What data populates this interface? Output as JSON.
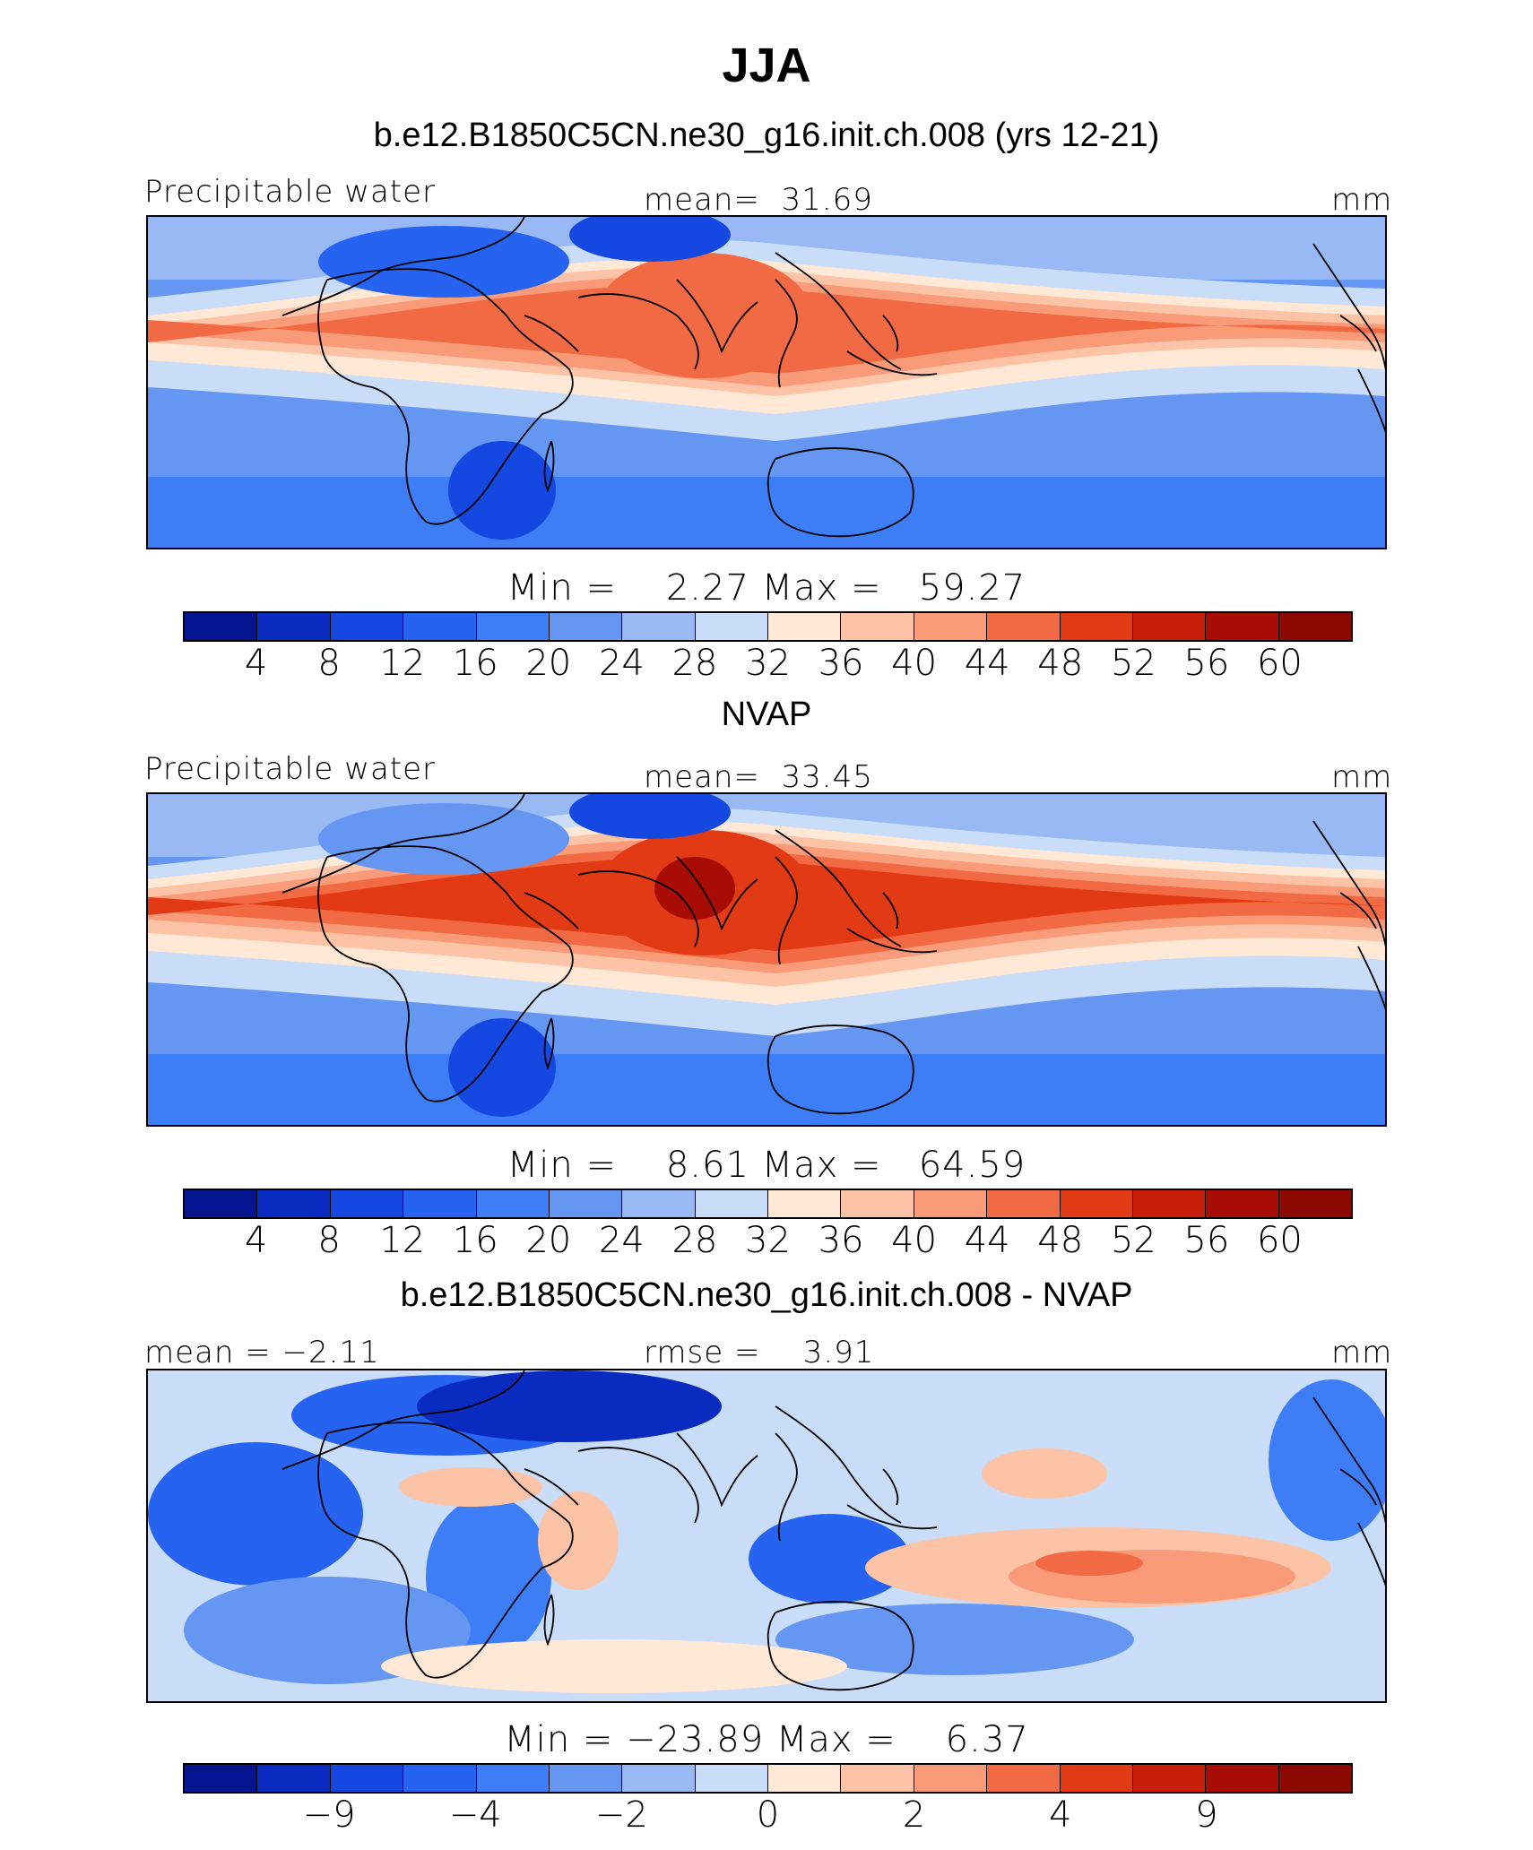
{
  "title": "JJA",
  "colors": [
    "#04158f",
    "#0a2bbf",
    "#1448e0",
    "#2563f0",
    "#3d7df5",
    "#6496f2",
    "#99b9f5",
    "#c9dcf8",
    "#ffe9d6",
    "#fcc3a6",
    "#f99a78",
    "#f26a43",
    "#e33a16",
    "#c91f0a",
    "#a80d05",
    "#8c0a02"
  ],
  "panels": [
    {
      "title": "b.e12.B1850C5CN.ne30_g16.init.ch.008 (yrs 12-21)",
      "left_label": "Precipitable water",
      "center_label": "mean=  31.69",
      "right_label": "mm",
      "minmax": "Min =    2.27 Max =   59.27",
      "ticks": [
        "4",
        "8",
        "12",
        "16",
        "20",
        "24",
        "28",
        "32",
        "36",
        "40",
        "44",
        "48",
        "52",
        "56",
        "60"
      ],
      "level": 0
    },
    {
      "title": "NVAP",
      "left_label": "Precipitable water",
      "center_label": "mean=  33.45",
      "right_label": "mm",
      "minmax": "Min =    8.61 Max =   64.59",
      "ticks": [
        "4",
        "8",
        "12",
        "16",
        "20",
        "24",
        "28",
        "32",
        "36",
        "40",
        "44",
        "48",
        "52",
        "56",
        "60"
      ],
      "level": 1
    },
    {
      "title": "b.e12.B1850C5CN.ne30_g16.init.ch.008 - NVAP",
      "left_label": "mean = −2.11",
      "center_label": "rmse =    3.91",
      "right_label": "mm",
      "minmax": "Min = −23.89 Max =    6.37",
      "ticks": [
        "−9",
        "−4",
        "−2",
        "0",
        "2",
        "4",
        "9"
      ],
      "level": 2
    }
  ]
}
